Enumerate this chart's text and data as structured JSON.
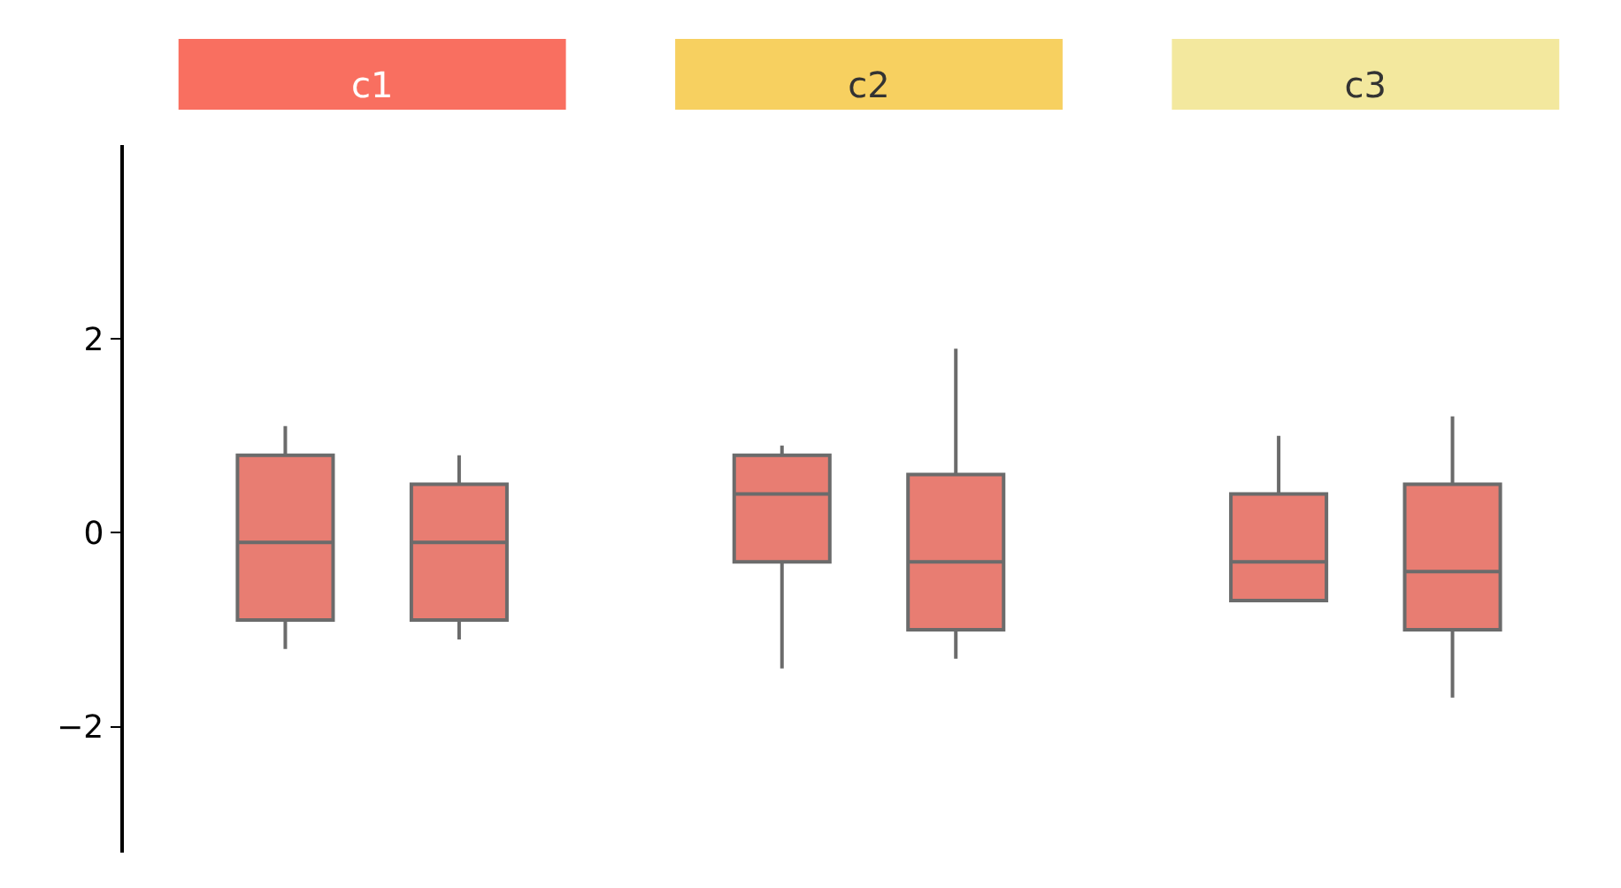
{
  "chart_data": {
    "type": "box",
    "categories": [
      "c1",
      "c2",
      "c3"
    ],
    "series": [
      {
        "color": "#e87d72",
        "boxes": [
          {
            "low": -1.2,
            "q1": -0.9,
            "median": -0.1,
            "q3": 0.8,
            "high": 1.1
          },
          {
            "low": -1.4,
            "q1": -0.3,
            "median": 0.4,
            "q3": 0.8,
            "high": 0.9
          },
          {
            "low": -0.7,
            "q1": -0.7,
            "median": -0.3,
            "q3": 0.4,
            "high": 1.0
          }
        ]
      },
      {
        "color": "#e87d72",
        "boxes": [
          {
            "low": -1.1,
            "q1": -0.9,
            "median": -0.1,
            "q3": 0.5,
            "high": 0.8
          },
          {
            "low": -1.3,
            "q1": -1.0,
            "median": -0.3,
            "q3": 0.6,
            "high": 1.9
          },
          {
            "low": -1.7,
            "q1": -1.0,
            "median": -0.4,
            "q3": 0.5,
            "high": 1.2
          }
        ]
      }
    ],
    "ylim": [
      -3.3,
      4.0
    ],
    "yticks": [
      -2,
      0,
      2
    ]
  }
}
